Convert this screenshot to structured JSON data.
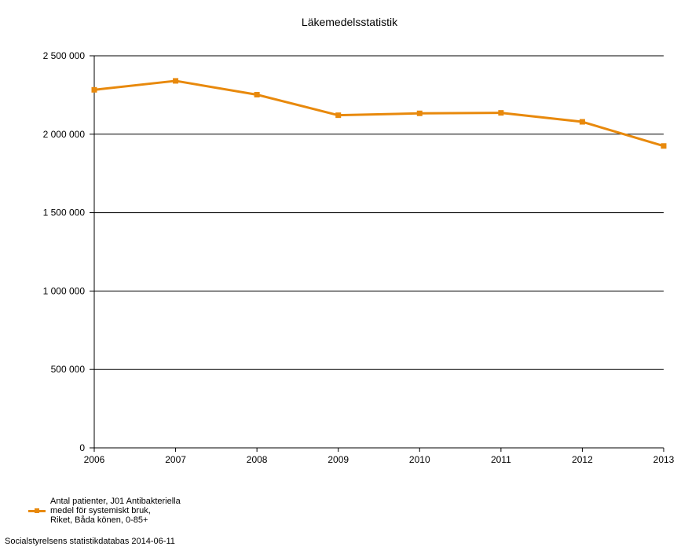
{
  "chart_data": {
    "type": "line",
    "title": "Läkemedelsstatistik",
    "xlabel": "",
    "ylabel": "",
    "categories": [
      "2006",
      "2007",
      "2008",
      "2009",
      "2010",
      "2011",
      "2012",
      "2013"
    ],
    "series": [
      {
        "name": "Antal patienter, J01 Antibakteriella\nmedel för systemiskt bruk,\nRiket, Båda könen, 0-85+",
        "color": "#e8890c",
        "values": [
          2283000,
          2340000,
          2252000,
          2121000,
          2133000,
          2136000,
          2079000,
          1925000
        ]
      }
    ],
    "ylim": [
      0,
      2500000
    ],
    "yticks": [
      0,
      500000,
      1000000,
      1500000,
      2000000,
      2500000
    ],
    "ytick_labels": [
      "0",
      "500 000",
      "1 000 000",
      "1 500 000",
      "2 000 000",
      "2 500 000"
    ],
    "grid": true,
    "legend_position": "bottom-left"
  },
  "footer": {
    "source": "Socialstyrelsens statistikdatabas 2014-06-11"
  }
}
